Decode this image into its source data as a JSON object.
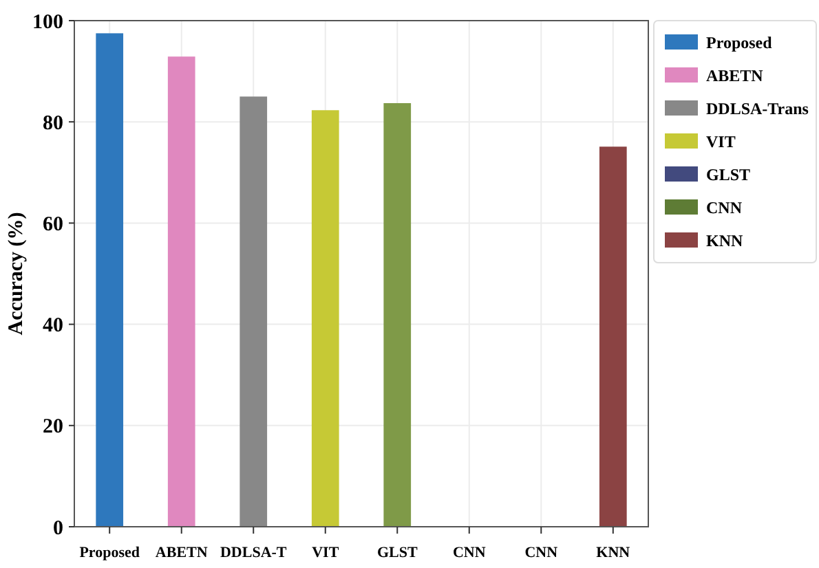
{
  "chart_data": {
    "type": "bar",
    "ylabel": "Accuracy (%)",
    "categories": [
      "Proposed",
      "ABETN",
      "DDLSA-T",
      "VIT",
      "GLST",
      "CNN",
      "CNN",
      "KNN"
    ],
    "series": [
      {
        "name": "Proposed",
        "color": "#2e78bd",
        "values": [
          97.5,
          null,
          null,
          null,
          null,
          null,
          null,
          null
        ]
      },
      {
        "name": "ABETN",
        "color": "#e088bf",
        "values": [
          null,
          92.9,
          null,
          null,
          null,
          null,
          null,
          null
        ]
      },
      {
        "name": "DDLSA-Trans",
        "color": "#888888",
        "values": [
          null,
          null,
          85.0,
          null,
          null,
          null,
          null,
          null
        ]
      },
      {
        "name": "VIT",
        "color": "#c6c935",
        "values": [
          null,
          null,
          null,
          82.3,
          null,
          null,
          null,
          null
        ]
      },
      {
        "color": "#7f9a48",
        "values": [
          null,
          null,
          null,
          null,
          83.7,
          null,
          null,
          null
        ]
      },
      {
        "name": "GLST",
        "color": "#424a7e",
        "values": [
          null,
          null,
          null,
          null,
          null,
          null,
          null,
          null
        ]
      },
      {
        "name": "CNN",
        "color": "#5e7c35",
        "values": [
          null,
          null,
          null,
          null,
          null,
          null,
          null,
          null
        ]
      },
      {
        "name": "KNN",
        "color": "#8b4343",
        "values": [
          null,
          null,
          null,
          null,
          null,
          null,
          null,
          75.1
        ]
      }
    ],
    "ylim": [
      0,
      100
    ],
    "yticks": [
      0,
      20,
      40,
      60,
      80,
      100
    ],
    "grid": true,
    "legend": "top right"
  }
}
